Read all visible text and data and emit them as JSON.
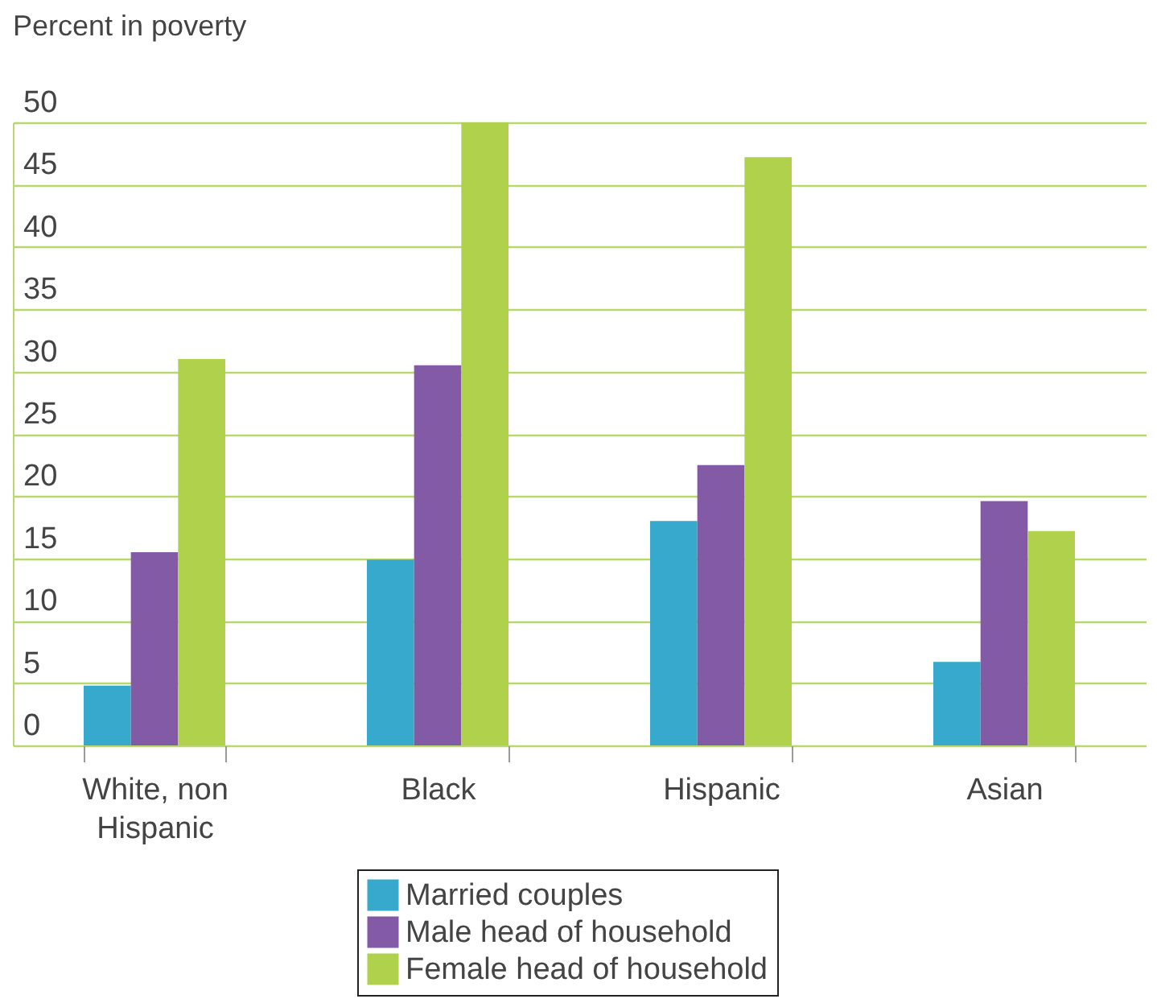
{
  "chart_data": {
    "type": "bar",
    "ylabel": "Percent in poverty",
    "categories": [
      "White, non Hispanic",
      "Black",
      "Hispanic",
      "Asian"
    ],
    "series": [
      {
        "name": "Married couples",
        "color": "#36a9cd",
        "values": [
          4.8,
          14.9,
          18.0,
          6.7
        ]
      },
      {
        "name": "Male head of household",
        "color": "#825aa6",
        "values": [
          15.5,
          30.5,
          22.5,
          19.6
        ]
      },
      {
        "name": "Female head of household",
        "color": "#afd14b",
        "values": [
          31.0,
          50.0,
          47.2,
          17.2
        ]
      }
    ],
    "ylim": [
      0,
      50
    ],
    "yticks": [
      0,
      5,
      10,
      15,
      20,
      25,
      30,
      35,
      40,
      45,
      50
    ],
    "grid": "y",
    "legend": "bottom"
  }
}
